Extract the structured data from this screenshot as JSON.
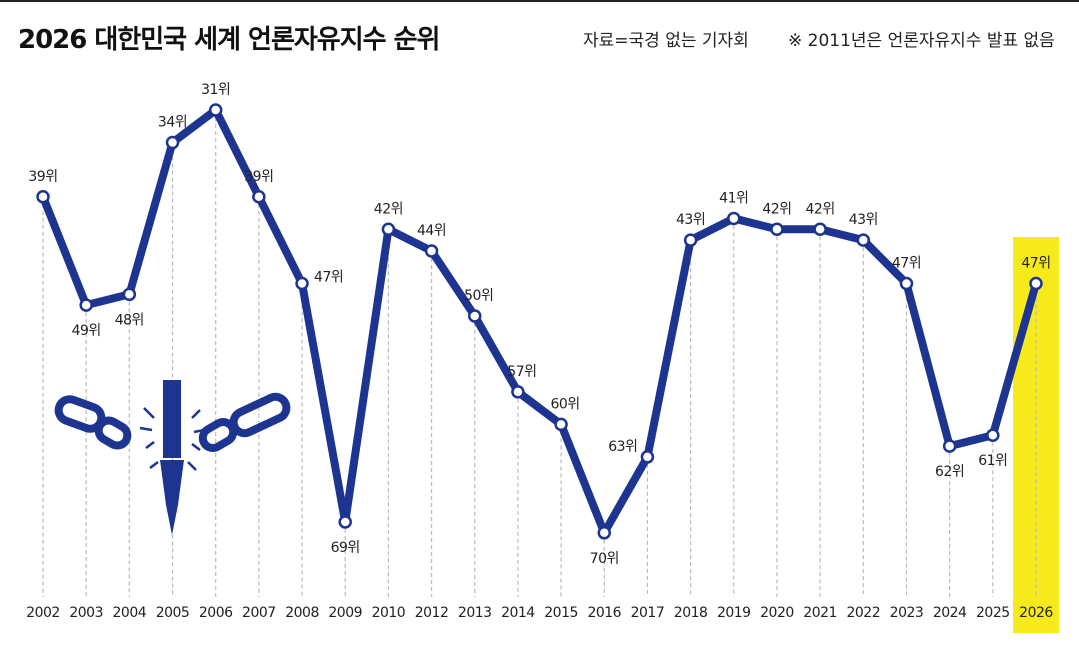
{
  "chart_data": {
    "type": "line",
    "title": "2026 대한민국 세계 언론자유지수 순위",
    "source": "자료=국경 없는 기자회",
    "note": "※ 2011년은 언론자유지수 발표 없음",
    "categories": [
      "2002",
      "2003",
      "2004",
      "2005",
      "2006",
      "2007",
      "2008",
      "2009",
      "2010",
      "2012",
      "2013",
      "2014",
      "2015",
      "2016",
      "2017",
      "2018",
      "2019",
      "2020",
      "2021",
      "2022",
      "2023",
      "2024",
      "2025",
      "2026"
    ],
    "series": [
      {
        "color": "#1d3591",
        "values": [
          39,
          49,
          48,
          34,
          31,
          39,
          47,
          69,
          42,
          44,
          50,
          57,
          60,
          70,
          63,
          43,
          41,
          42,
          42,
          43,
          47,
          62,
          61,
          47
        ],
        "value_labels": [
          "39위",
          "49위",
          "48위",
          "34위",
          "31위",
          "39위",
          "47위",
          "69위",
          "42위",
          "44위",
          "50위",
          "57위",
          "60위",
          "70위",
          "63위",
          "43위",
          "41위",
          "42위",
          "42위",
          "43위",
          "47위",
          "62위",
          "61위",
          "47위"
        ]
      }
    ],
    "ylim": [
      75,
      25
    ],
    "highlight_color": "#f7ea1c"
  }
}
